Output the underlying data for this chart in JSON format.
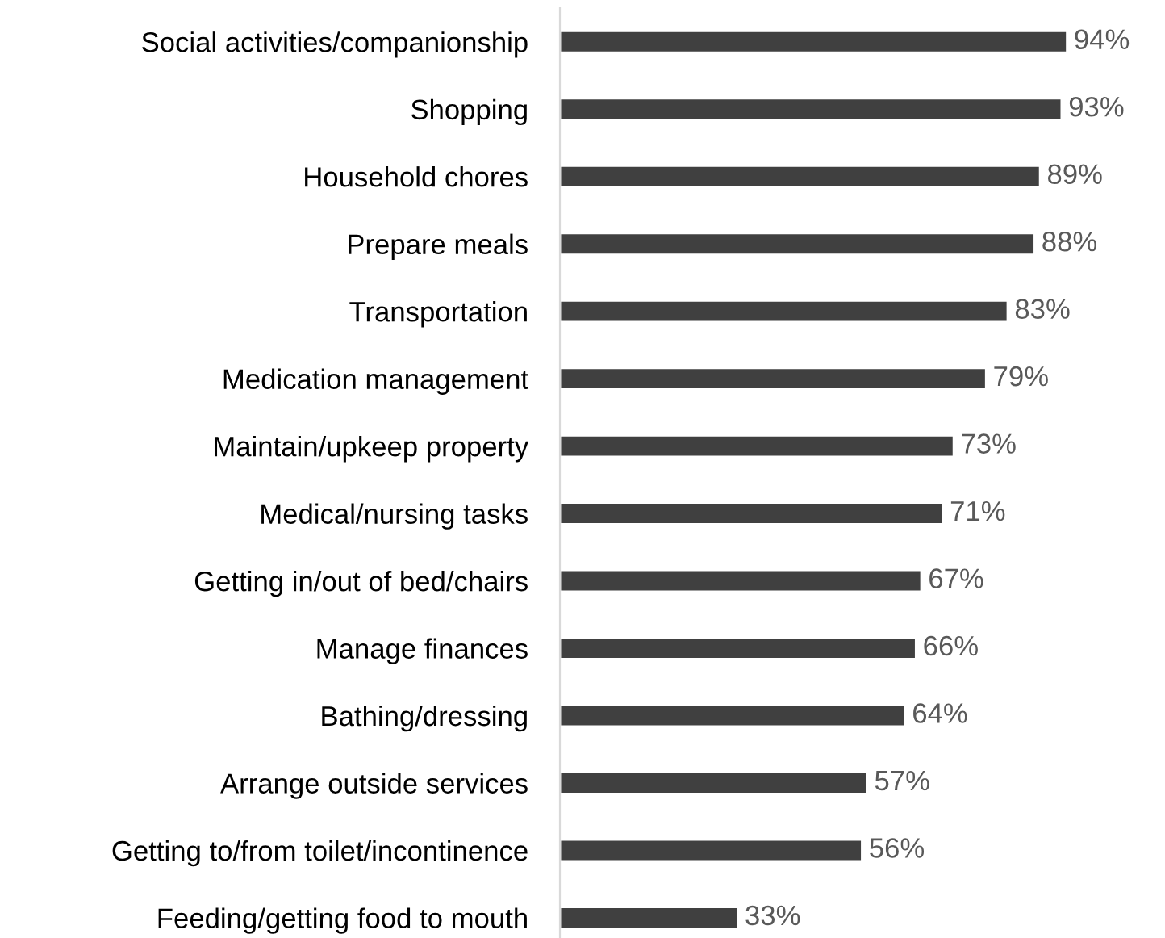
{
  "chart_data": {
    "type": "bar",
    "orientation": "horizontal",
    "grid": false,
    "legend": false,
    "tick_labels": "y",
    "categories": [
      "Social activities/companionship",
      "Shopping",
      "Household chores",
      "Prepare meals",
      "Transportation",
      "Medication management",
      "Maintain/upkeep property",
      "Medical/nursing tasks",
      "Getting in/out of bed/chairs",
      "Manage finances",
      "Bathing/dressing",
      "Arrange outside services",
      "Getting to/from toilet/incontinence",
      "Feeding/getting food to mouth"
    ],
    "values": [
      94,
      93,
      89,
      88,
      83,
      79,
      73,
      71,
      67,
      66,
      64,
      57,
      56,
      33
    ],
    "value_labels": [
      "94%",
      "93%",
      "89%",
      "88%",
      "83%",
      "79%",
      "73%",
      "71%",
      "67%",
      "66%",
      "64%",
      "57%",
      "56%",
      "33%"
    ],
    "color": "#404040"
  }
}
